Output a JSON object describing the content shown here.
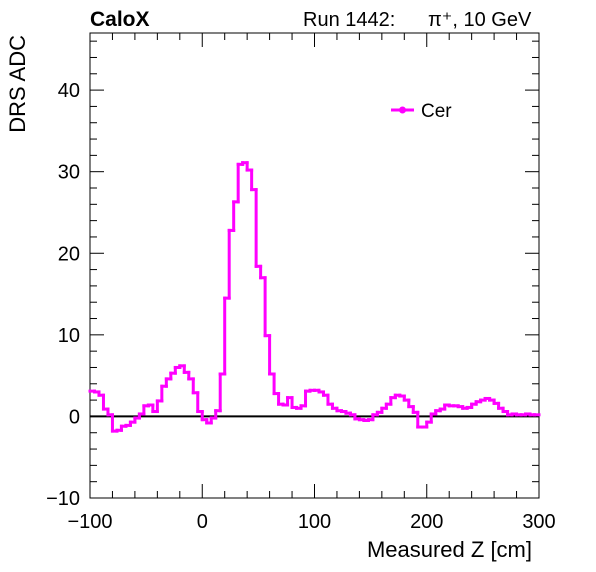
{
  "chart_data": {
    "type": "line",
    "experiment_label": "CaloX",
    "run_label": "Run 1442:",
    "beam_label": "π⁺, 10 GeV",
    "xlabel": "Measured Z [cm]",
    "ylabel": "DRS ADC",
    "xlim": [
      -100,
      300
    ],
    "ylim": [
      -10,
      47
    ],
    "xticks": [
      -100,
      0,
      100,
      200,
      300
    ],
    "yticks": [
      -10,
      0,
      10,
      20,
      30,
      40
    ],
    "grid": false,
    "legend_position": "top-right",
    "zero_line": true,
    "series": [
      {
        "name": "Cer",
        "color": "#ff00ff",
        "bin_width": 4,
        "x": [
          -98,
          -94,
          -90,
          -86,
          -82,
          -78,
          -74,
          -70,
          -66,
          -62,
          -58,
          -54,
          -50,
          -46,
          -42,
          -38,
          -34,
          -30,
          -26,
          -22,
          -18,
          -14,
          -10,
          -6,
          -2,
          2,
          6,
          10,
          14,
          18,
          22,
          26,
          30,
          34,
          38,
          42,
          46,
          50,
          54,
          58,
          62,
          66,
          70,
          74,
          78,
          82,
          86,
          90,
          94,
          98,
          102,
          106,
          110,
          114,
          118,
          122,
          126,
          130,
          134,
          138,
          142,
          146,
          150,
          154,
          158,
          162,
          166,
          170,
          174,
          178,
          182,
          186,
          190,
          194,
          198,
          202,
          206,
          210,
          214,
          218,
          222,
          226,
          230,
          234,
          238,
          242,
          246,
          250,
          254,
          258,
          262,
          266,
          270,
          274,
          278,
          282,
          286,
          290,
          294,
          298
        ],
        "values": [
          3.1,
          3.0,
          2.6,
          0.9,
          0.2,
          -1.8,
          -1.7,
          -1.2,
          -1.1,
          -0.7,
          -0.2,
          0.3,
          1.3,
          1.4,
          0.6,
          1.9,
          3.7,
          4.6,
          5.3,
          6.0,
          6.2,
          5.4,
          4.6,
          2.9,
          0.6,
          -0.4,
          -0.8,
          -0.2,
          0.7,
          5.2,
          14.5,
          22.8,
          26.3,
          30.9,
          31.1,
          30.2,
          27.8,
          18.4,
          17.0,
          9.9,
          5.2,
          2.8,
          1.5,
          1.4,
          2.3,
          1.1,
          1.0,
          1.3,
          3.1,
          3.2,
          3.2,
          3.0,
          2.6,
          1.5,
          1.0,
          0.7,
          0.6,
          0.4,
          0.2,
          -0.3,
          -0.4,
          -0.5,
          -0.4,
          0.2,
          0.5,
          1.0,
          1.5,
          2.3,
          2.6,
          2.5,
          2.0,
          1.2,
          0.5,
          -1.3,
          -1.3,
          -0.7,
          0.3,
          0.7,
          0.9,
          1.4,
          1.3,
          1.3,
          1.2,
          1.0,
          1.1,
          1.5,
          1.8,
          2.0,
          2.2,
          2.0,
          1.6,
          1.0,
          0.6,
          0.2,
          0.3,
          0.2,
          0.2,
          0.3,
          0.2,
          0.2
        ]
      }
    ]
  }
}
